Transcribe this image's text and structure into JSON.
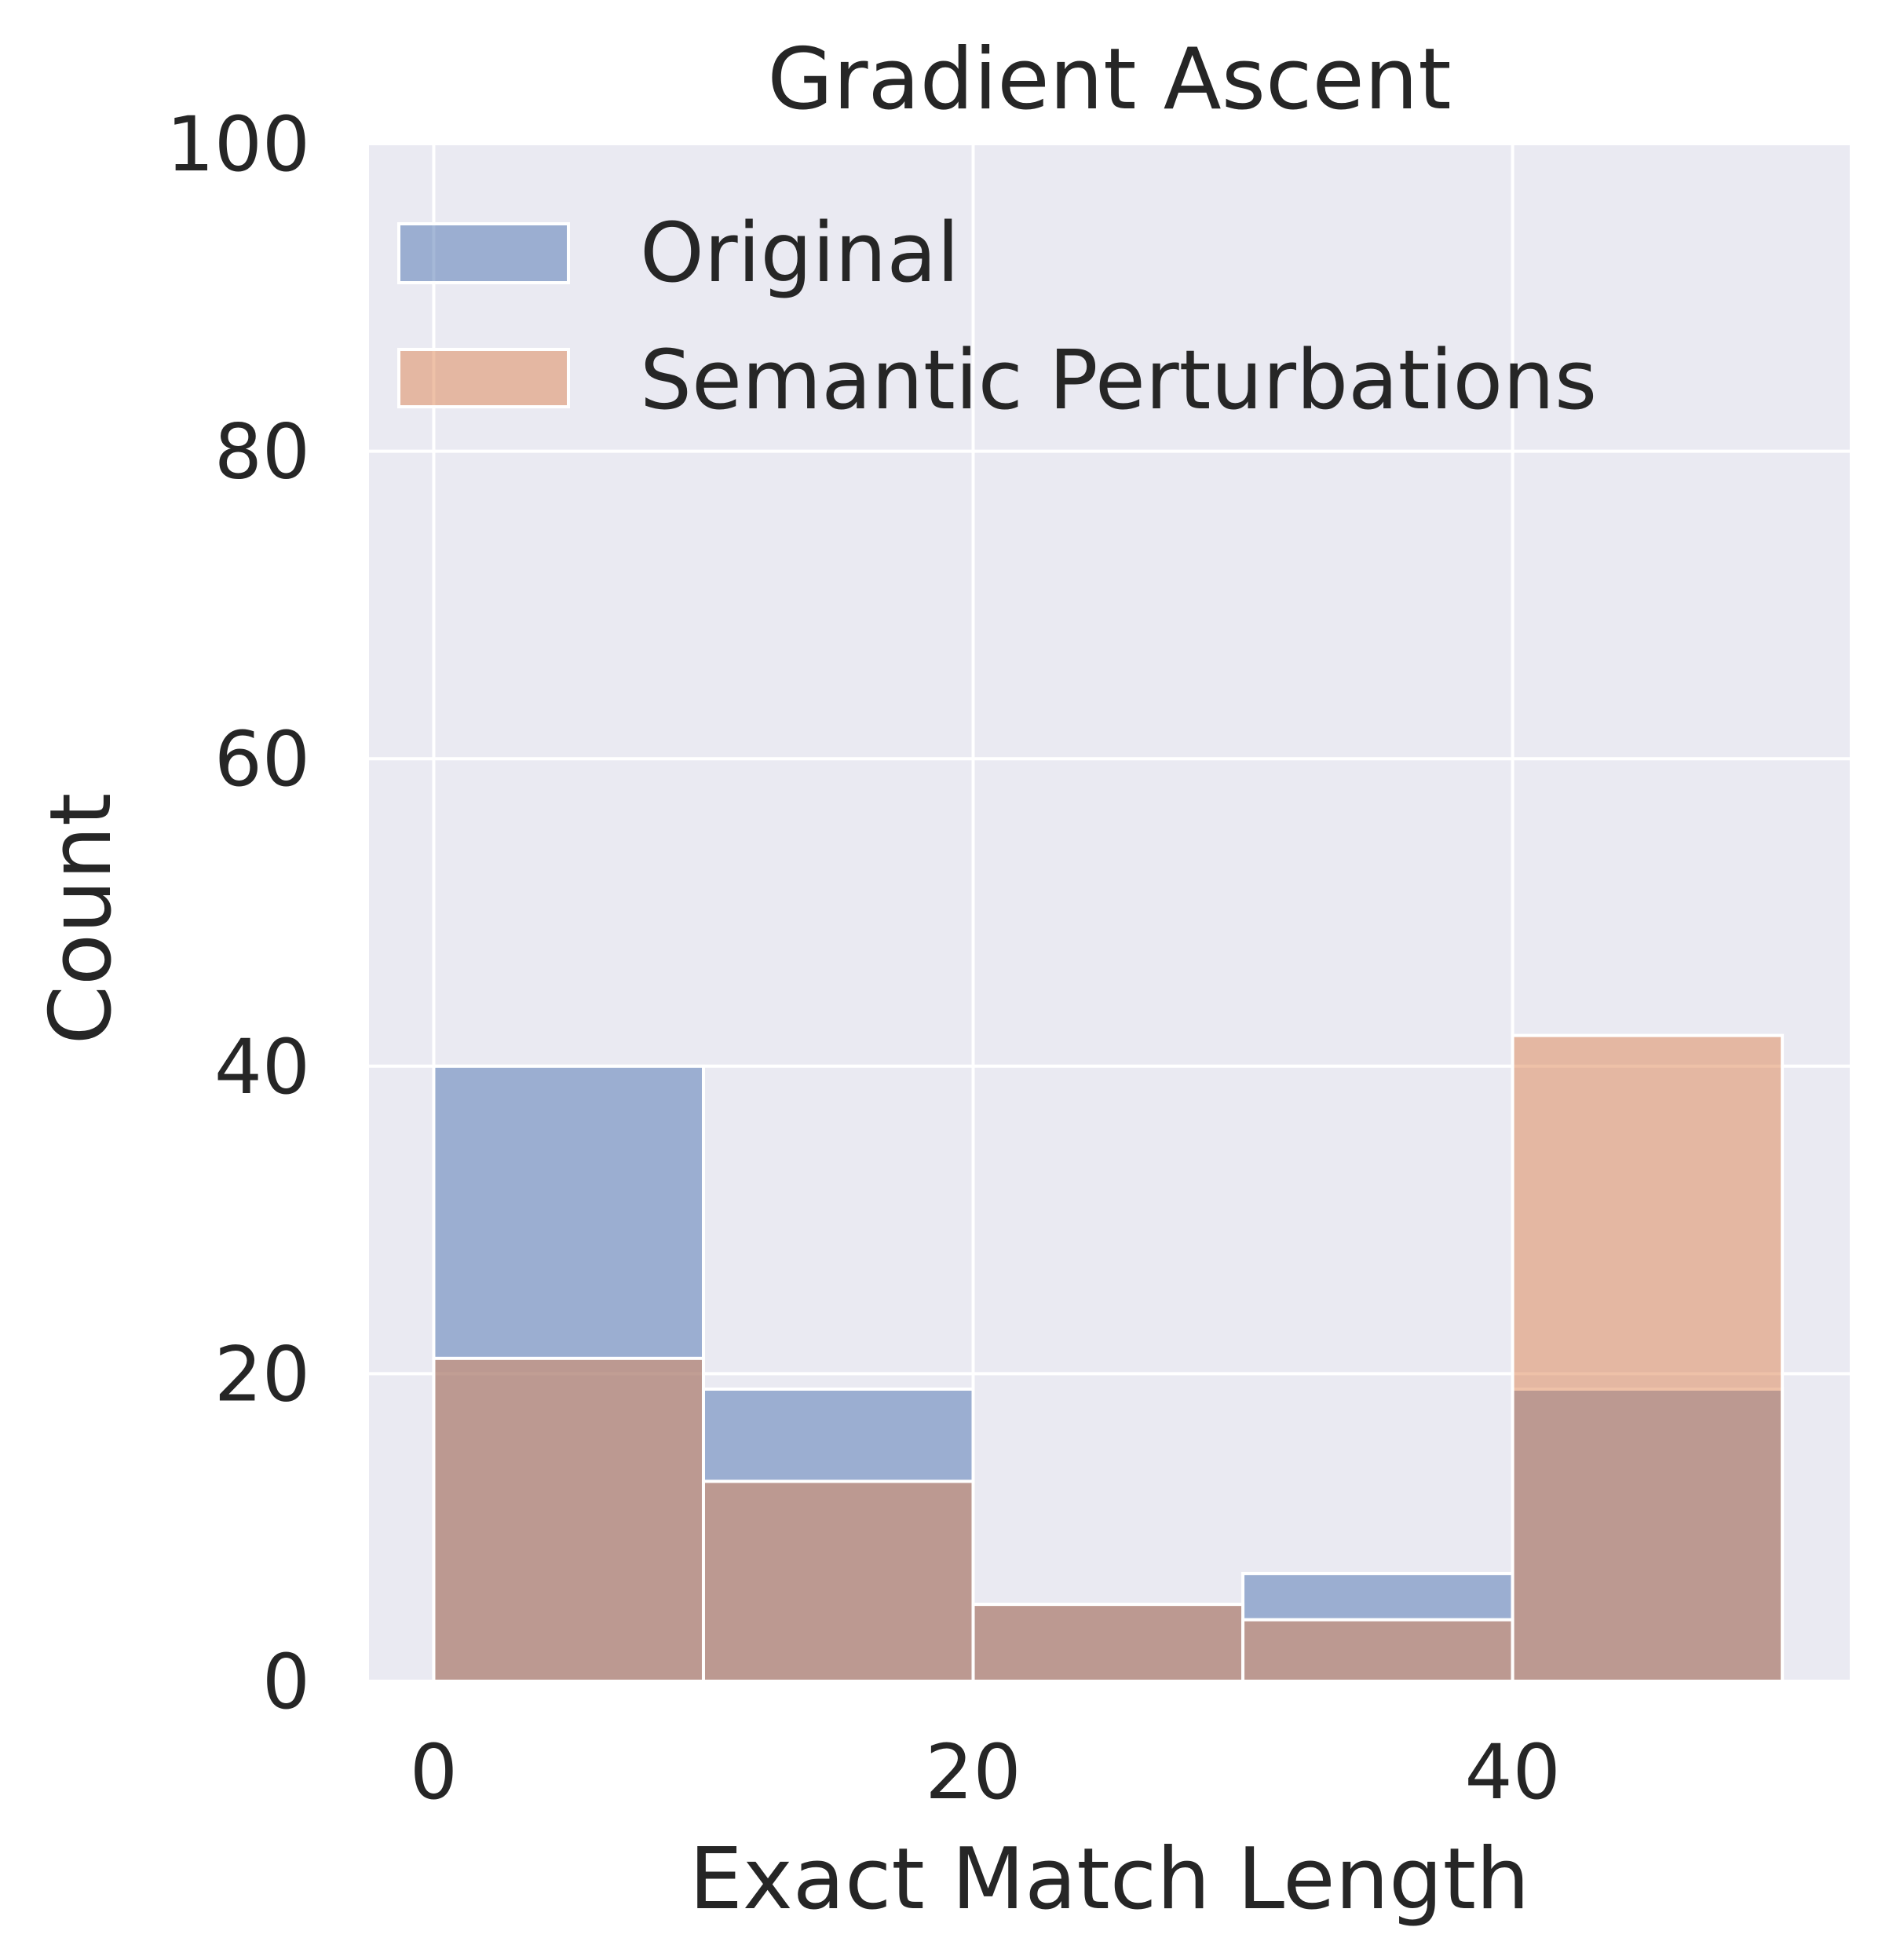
{
  "chart_data": {
    "type": "bar",
    "title": "Gradient Ascent",
    "xlabel": "Exact Match Length",
    "ylabel": "Count",
    "xlim": [
      -2.4,
      52.5
    ],
    "ylim": [
      0,
      100
    ],
    "xticks": [
      0,
      20,
      40
    ],
    "yticks": [
      0,
      20,
      40,
      60,
      80,
      100
    ],
    "grid": true,
    "legend_position": "top-left",
    "bins": [
      [
        0,
        10
      ],
      [
        10,
        20
      ],
      [
        20,
        30
      ],
      [
        30,
        40
      ],
      [
        40,
        50
      ]
    ],
    "series": [
      {
        "name": "Original",
        "values": [
          40,
          19,
          5,
          7,
          19
        ],
        "color": "#4c72b0"
      },
      {
        "name": "Semantic Perturbations",
        "values": [
          21,
          13,
          5,
          4,
          42
        ],
        "color": "#dd8452"
      }
    ],
    "colors": {
      "plot_background": "#eaeaf2",
      "grid": "#ffffff",
      "text": "#262626"
    }
  }
}
